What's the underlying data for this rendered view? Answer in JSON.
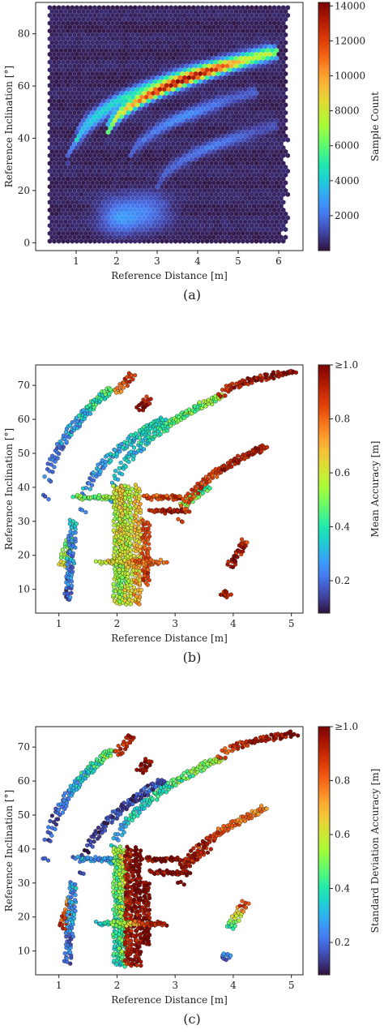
{
  "chart_data": [
    {
      "type": "heatmap",
      "panel_label": "(a)",
      "xlabel": "Reference Distance [m]",
      "ylabel": "Reference Inclination [°]",
      "colorbar_label": "Sample Count",
      "x_ticks": [
        "1",
        "2",
        "3",
        "4",
        "5",
        "6"
      ],
      "y_ticks": [
        "0",
        "20",
        "40",
        "60",
        "80"
      ],
      "colorbar_ticks": [
        "2000",
        "4000",
        "6000",
        "8000",
        "10000",
        "12000",
        "14000"
      ],
      "xlim": [
        0.0,
        6.6
      ],
      "ylim": [
        -3,
        92
      ],
      "clim": [
        0,
        14200
      ],
      "background_region": {
        "x": [
          0.35,
          6.2
        ],
        "y": [
          0,
          90
        ]
      },
      "features": [
        {
          "kind": "arc",
          "x0": 1.0,
          "y0": 38,
          "x1": 5.8,
          "y1": 74,
          "peak": 4200
        },
        {
          "kind": "arc",
          "x0": 1.75,
          "y0": 40,
          "x1": 6.0,
          "y1": 73,
          "peak": 12800
        },
        {
          "kind": "arc",
          "x0": 0.75,
          "y0": 28,
          "x1": 2.3,
          "y1": 55,
          "peak": 2600
        },
        {
          "kind": "arc",
          "x0": 2.3,
          "y0": 30,
          "x1": 5.5,
          "y1": 58,
          "peak": 2200
        },
        {
          "kind": "arc",
          "x0": 3.0,
          "y0": 20,
          "x1": 6.0,
          "y1": 45,
          "peak": 1800
        },
        {
          "kind": "blob",
          "x": 2.1,
          "y": 10,
          "peak": 2300
        },
        {
          "kind": "blob",
          "x": 2.8,
          "y": 12,
          "peak": 1600
        }
      ]
    },
    {
      "type": "scatter",
      "panel_label": "(b)",
      "xlabel": "Reference Distance [m]",
      "ylabel": "Reference Inclination [°]",
      "colorbar_label": "Mean Accuracy [m]",
      "x_ticks": [
        "1",
        "2",
        "3",
        "4",
        "5"
      ],
      "y_ticks": [
        "10",
        "20",
        "30",
        "40",
        "50",
        "60",
        "70"
      ],
      "colorbar_ticks": [
        "0.2",
        "0.4",
        "0.6",
        "0.8",
        "≥1.0"
      ],
      "xlim": [
        0.6,
        5.2
      ],
      "ylim": [
        3,
        76
      ],
      "clim": [
        0.08,
        1.0
      ],
      "segments": [
        {
          "x0": 0.78,
          "y0": 37,
          "x1": 1.9,
          "y1": 69,
          "v0": 0.18,
          "v1": 0.45
        },
        {
          "x0": 1.4,
          "y0": 33,
          "x1": 2.8,
          "y1": 60,
          "v0": 0.25,
          "v1": 0.4
        },
        {
          "x0": 1.9,
          "y0": 36,
          "x1": 3.8,
          "y1": 67,
          "v0": 0.3,
          "v1": 0.55
        },
        {
          "x0": 3.8,
          "y0": 67,
          "x1": 5.05,
          "y1": 74,
          "v0": 0.9,
          "v1": 1.0
        },
        {
          "x0": 1.05,
          "y0": 17,
          "x1": 1.2,
          "y1": 25,
          "v0": 0.6,
          "v1": 0.5
        },
        {
          "x0": 1.15,
          "y0": 7,
          "x1": 1.25,
          "y1": 30,
          "v0": 0.2,
          "v1": 0.3
        },
        {
          "x0": 1.3,
          "y0": 37,
          "x1": 2.0,
          "y1": 37,
          "v0": 0.45,
          "v1": 0.55
        },
        {
          "x0": 2.0,
          "y0": 6,
          "x1": 2.0,
          "y1": 40,
          "v0": 0.55,
          "v1": 0.6
        },
        {
          "x0": 2.1,
          "y0": 6,
          "x1": 2.1,
          "y1": 40,
          "v0": 0.5,
          "v1": 0.7
        },
        {
          "x0": 2.2,
          "y0": 6,
          "x1": 2.2,
          "y1": 40,
          "v0": 0.6,
          "v1": 0.55
        },
        {
          "x0": 2.35,
          "y0": 6,
          "x1": 2.35,
          "y1": 40,
          "v0": 0.7,
          "v1": 0.65
        },
        {
          "x0": 2.5,
          "y0": 12,
          "x1": 2.5,
          "y1": 30,
          "v0": 0.85,
          "v1": 0.8
        },
        {
          "x0": 1.7,
          "y0": 18,
          "x1": 2.8,
          "y1": 18,
          "v0": 0.6,
          "v1": 0.85
        },
        {
          "x0": 2.5,
          "y0": 37,
          "x1": 3.1,
          "y1": 37,
          "v0": 0.8,
          "v1": 0.9
        },
        {
          "x0": 2.6,
          "y0": 33,
          "x1": 3.2,
          "y1": 33,
          "v0": 0.9,
          "v1": 0.9
        },
        {
          "x0": 3.15,
          "y0": 35,
          "x1": 3.55,
          "y1": 40,
          "v0": 0.55,
          "v1": 0.45
        },
        {
          "x0": 3.1,
          "y0": 30,
          "x1": 4.55,
          "y1": 52,
          "v0": 0.85,
          "v1": 0.95
        },
        {
          "x0": 3.95,
          "y0": 17,
          "x1": 4.2,
          "y1": 24,
          "v0": 0.95,
          "v1": 0.9
        },
        {
          "x0": 2.0,
          "y0": 68,
          "x1": 2.25,
          "y1": 73,
          "v0": 0.75,
          "v1": 0.9
        },
        {
          "x0": 2.4,
          "y0": 63,
          "x1": 2.55,
          "y1": 66,
          "v0": 0.95,
          "v1": 0.95
        },
        {
          "x0": 3.85,
          "y0": 8,
          "x1": 3.9,
          "y1": 9,
          "v0": 0.9,
          "v1": 0.9
        }
      ]
    },
    {
      "type": "scatter",
      "panel_label": "(c)",
      "xlabel": "Reference Distance [m]",
      "ylabel": "Reference Inclination [°]",
      "colorbar_label": "Standard Deviation Accuracy [m]",
      "x_ticks": [
        "1",
        "2",
        "3",
        "4",
        "5"
      ],
      "y_ticks": [
        "10",
        "20",
        "30",
        "40",
        "50",
        "60",
        "70"
      ],
      "colorbar_ticks": [
        "0.2",
        "0.4",
        "0.6",
        "0.8",
        "≥1.0"
      ],
      "xlim": [
        0.6,
        5.2
      ],
      "ylim": [
        3,
        76
      ],
      "clim": [
        0.08,
        1.0
      ],
      "segments": [
        {
          "x0": 0.78,
          "y0": 37,
          "x1": 1.9,
          "y1": 69,
          "v0": 0.15,
          "v1": 0.5
        },
        {
          "x0": 1.4,
          "y0": 33,
          "x1": 2.8,
          "y1": 60,
          "v0": 0.12,
          "v1": 0.2
        },
        {
          "x0": 1.9,
          "y0": 36,
          "x1": 3.8,
          "y1": 67,
          "v0": 0.3,
          "v1": 0.55
        },
        {
          "x0": 3.8,
          "y0": 67,
          "x1": 5.05,
          "y1": 74,
          "v0": 0.85,
          "v1": 1.0
        },
        {
          "x0": 1.05,
          "y0": 17,
          "x1": 1.2,
          "y1": 25,
          "v0": 0.9,
          "v1": 0.7
        },
        {
          "x0": 1.15,
          "y0": 7,
          "x1": 1.25,
          "y1": 30,
          "v0": 0.2,
          "v1": 0.3
        },
        {
          "x0": 1.3,
          "y0": 37,
          "x1": 2.0,
          "y1": 37,
          "v0": 0.25,
          "v1": 0.3
        },
        {
          "x0": 2.0,
          "y0": 6,
          "x1": 2.0,
          "y1": 40,
          "v0": 0.4,
          "v1": 0.5
        },
        {
          "x0": 2.1,
          "y0": 6,
          "x1": 2.1,
          "y1": 40,
          "v0": 0.45,
          "v1": 0.6
        },
        {
          "x0": 2.2,
          "y0": 6,
          "x1": 2.2,
          "y1": 40,
          "v0": 0.9,
          "v1": 0.95
        },
        {
          "x0": 2.35,
          "y0": 6,
          "x1": 2.35,
          "y1": 40,
          "v0": 0.95,
          "v1": 1.0
        },
        {
          "x0": 2.5,
          "y0": 12,
          "x1": 2.5,
          "y1": 30,
          "v0": 1.0,
          "v1": 1.0
        },
        {
          "x0": 1.7,
          "y0": 18,
          "x1": 2.8,
          "y1": 18,
          "v0": 0.3,
          "v1": 1.0
        },
        {
          "x0": 2.5,
          "y0": 37,
          "x1": 3.1,
          "y1": 37,
          "v0": 1.0,
          "v1": 1.0
        },
        {
          "x0": 2.6,
          "y0": 33,
          "x1": 3.2,
          "y1": 33,
          "v0": 1.0,
          "v1": 1.0
        },
        {
          "x0": 3.15,
          "y0": 35,
          "x1": 3.55,
          "y1": 40,
          "v0": 0.95,
          "v1": 0.9
        },
        {
          "x0": 3.1,
          "y0": 30,
          "x1": 4.55,
          "y1": 52,
          "v0": 0.95,
          "v1": 0.75
        },
        {
          "x0": 3.95,
          "y0": 17,
          "x1": 4.2,
          "y1": 24,
          "v0": 0.35,
          "v1": 0.9
        },
        {
          "x0": 2.0,
          "y0": 68,
          "x1": 2.25,
          "y1": 73,
          "v0": 0.9,
          "v1": 0.95
        },
        {
          "x0": 2.4,
          "y0": 63,
          "x1": 2.55,
          "y1": 66,
          "v0": 1.0,
          "v1": 1.0
        },
        {
          "x0": 3.85,
          "y0": 8,
          "x1": 3.9,
          "y1": 9,
          "v0": 0.2,
          "v1": 0.2
        }
      ]
    }
  ],
  "colormap": [
    "#30123b",
    "#4145ab",
    "#4675ed",
    "#39a2fc",
    "#1bcfd4",
    "#24eca6",
    "#61fc6c",
    "#a4fc3b",
    "#d1e834",
    "#f3c63a",
    "#fe9b2d",
    "#f36315",
    "#d93806",
    "#b11901",
    "#7a0402"
  ]
}
